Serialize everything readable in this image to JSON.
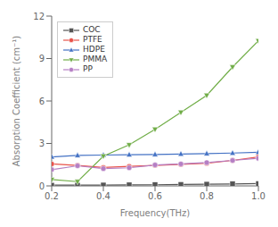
{
  "chart_data": {
    "type": "line",
    "xlabel": "Frequency(THz)",
    "ylabel": "Absorption Coefficient (cm⁻¹)",
    "x": [
      0.2,
      0.3,
      0.4,
      0.5,
      0.6,
      0.7,
      0.8,
      0.9,
      1.0
    ],
    "series": [
      {
        "name": "COC",
        "color": "#555555",
        "marker": "square",
        "line_style": "solid",
        "values": [
          0.05,
          0.05,
          0.06,
          0.07,
          0.08,
          0.1,
          0.12,
          0.14,
          0.16
        ]
      },
      {
        "name": "PTFE",
        "color": "#e8524a",
        "marker": "circle",
        "line_style": "solid",
        "values": [
          1.55,
          1.45,
          1.3,
          1.38,
          1.45,
          1.52,
          1.6,
          1.8,
          2.05
        ]
      },
      {
        "name": "HDPE",
        "color": "#4472c4",
        "marker": "triangle-up",
        "line_style": "solid",
        "values": [
          2.05,
          2.15,
          2.18,
          2.2,
          2.22,
          2.25,
          2.28,
          2.32,
          2.38
        ]
      },
      {
        "name": "PMMA",
        "color": "#70ad47",
        "marker": "triangle-down",
        "line_style": "solid",
        "values": [
          0.45,
          0.3,
          2.1,
          2.9,
          4.0,
          5.2,
          6.4,
          8.4,
          10.25
        ]
      },
      {
        "name": "PP",
        "color": "#b57fc4",
        "marker": "circle",
        "line_style": "solid",
        "values": [
          1.15,
          1.42,
          1.22,
          1.28,
          1.48,
          1.55,
          1.65,
          1.8,
          1.95
        ]
      }
    ],
    "xlim": [
      0.2,
      1.0
    ],
    "ylim": [
      0,
      12
    ],
    "xticks": [
      0.2,
      0.4,
      0.6,
      0.8,
      {
        "value": 1,
        "label": "1.0"
      }
    ],
    "yticks": [
      0,
      3,
      6,
      9,
      12
    ],
    "grid": false,
    "legend": "upper left"
  }
}
